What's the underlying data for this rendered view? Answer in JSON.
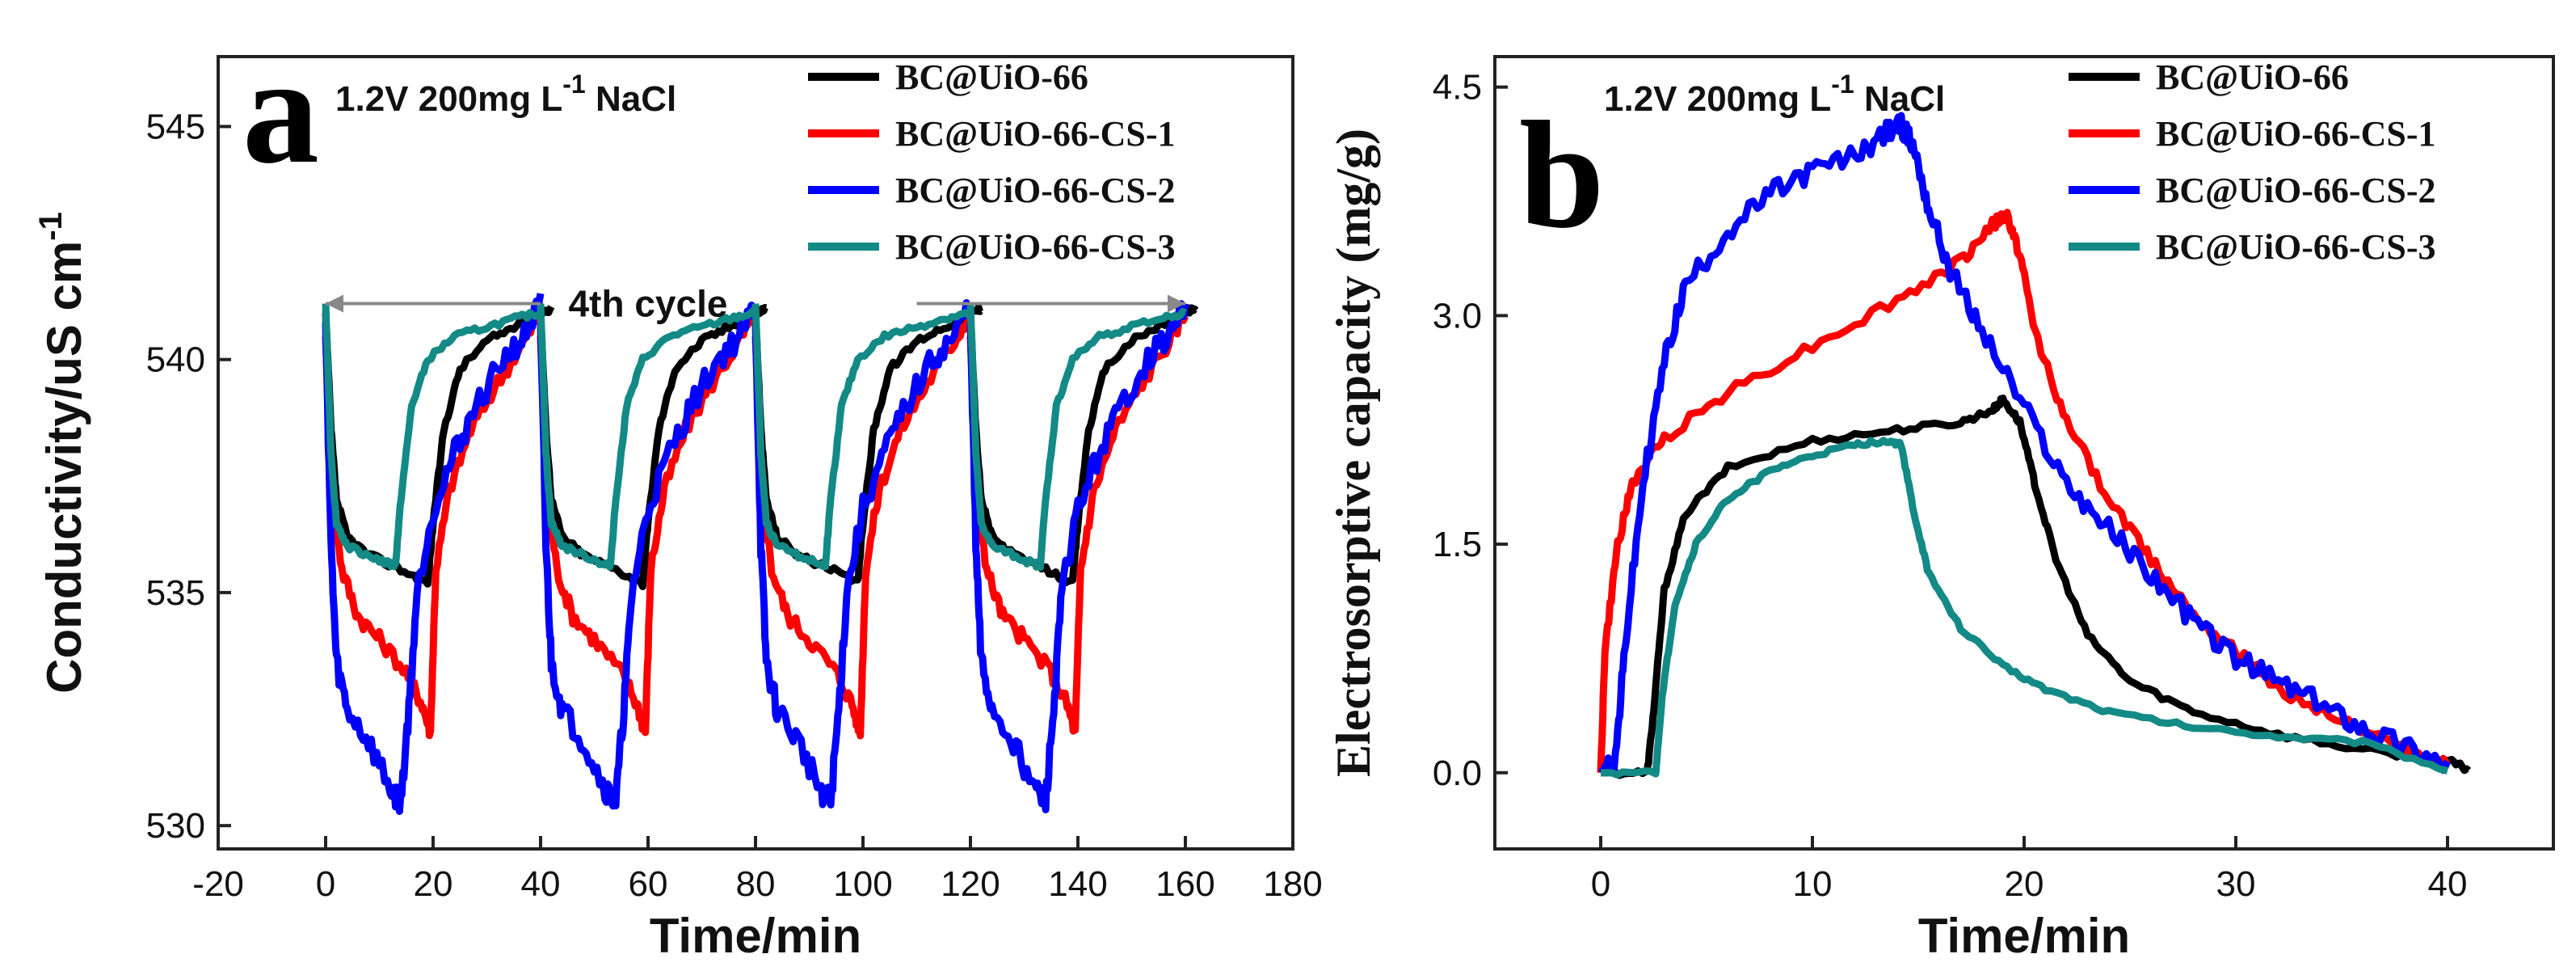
{
  "chart_data": [
    {
      "panel": "a",
      "type": "line",
      "condition": "1.2V 200mg L",
      "condition_sup": "-1",
      "condition_suffix": " NaCl",
      "xlabel": "Time/min",
      "ylabel": "Conductivity/uS cm",
      "ylabel_sup": "-1",
      "xlim": [
        -20,
        180
      ],
      "ylim": [
        529.5,
        546.5
      ],
      "xticks": [
        "-20",
        "0",
        "20",
        "40",
        "60",
        "80",
        "100",
        "120",
        "140",
        "160",
        "180"
      ],
      "xtick_values": [
        -20,
        0,
        20,
        40,
        60,
        80,
        100,
        120,
        140,
        160,
        180
      ],
      "yticks": [
        "530",
        "535",
        "540",
        "545"
      ],
      "ytick_values": [
        530,
        535,
        540,
        545
      ],
      "annotation": "4th cycle",
      "legend_position": "top-right",
      "cycles": [
        0,
        40,
        80,
        120
      ],
      "series": [
        {
          "name": "BC@UiO-66",
          "color": "#000000",
          "points": [
            [
              0,
              541.0
            ],
            [
              1,
              538.5
            ],
            [
              2,
              537.0
            ],
            [
              4,
              536.2
            ],
            [
              8,
              535.8
            ],
            [
              14,
              535.5
            ],
            [
              19,
              535.2
            ],
            [
              20,
              536.5
            ],
            [
              22,
              538.5
            ],
            [
              25,
              539.8
            ],
            [
              30,
              540.4
            ],
            [
              35,
              540.7
            ],
            [
              40,
              541.0
            ],
            [
              42,
              541.1
            ]
          ]
        },
        {
          "name": "BC@UiO-66-CS-1",
          "color": "#ff0000",
          "points": [
            [
              0,
              540.5
            ],
            [
              1,
              537.5
            ],
            [
              3,
              535.5
            ],
            [
              6,
              534.5
            ],
            [
              10,
              534.0
            ],
            [
              15,
              533.3
            ],
            [
              18,
              532.6
            ],
            [
              19.5,
              532.0
            ],
            [
              20.5,
              535.5
            ],
            [
              23,
              537.2
            ],
            [
              27,
              538.5
            ],
            [
              32,
              539.5
            ],
            [
              37,
              540.4
            ],
            [
              40,
              541.0
            ]
          ]
        },
        {
          "name": "BC@UiO-66-CS-2",
          "color": "#0000ff",
          "points": [
            [
              0,
              540.8
            ],
            [
              1,
              536.0
            ],
            [
              2,
              533.5
            ],
            [
              4,
              532.5
            ],
            [
              8,
              531.8
            ],
            [
              12,
              530.8
            ],
            [
              14,
              530.5
            ],
            [
              15.5,
              532.5
            ],
            [
              17,
              535.0
            ],
            [
              20,
              536.8
            ],
            [
              24,
              538.0
            ],
            [
              28,
              539.0
            ],
            [
              33,
              540.0
            ],
            [
              37,
              540.5
            ],
            [
              40,
              541.2
            ]
          ]
        },
        {
          "name": "BC@UiO-66-CS-3",
          "color": "#138a86",
          "points": [
            [
              0,
              541.2
            ],
            [
              1,
              538.0
            ],
            [
              2,
              536.5
            ],
            [
              4,
              536.0
            ],
            [
              8,
              535.8
            ],
            [
              12,
              535.6
            ],
            [
              13,
              535.6
            ],
            [
              14,
              537.0
            ],
            [
              16,
              539.0
            ],
            [
              19,
              540.0
            ],
            [
              24,
              540.5
            ],
            [
              30,
              540.7
            ],
            [
              36,
              540.9
            ],
            [
              40,
              541.0
            ]
          ]
        }
      ]
    },
    {
      "panel": "b",
      "type": "line",
      "condition": "1.2V 200mg L",
      "condition_sup": "-1",
      "condition_suffix": " NaCl",
      "xlabel": "Time/min",
      "ylabel": "Electrosorptive capacity (mg/g)",
      "xlim": [
        -5,
        45
      ],
      "ylim": [
        -0.5,
        4.7
      ],
      "xticks": [
        "0",
        "10",
        "20",
        "30",
        "40"
      ],
      "xtick_values": [
        0,
        10,
        20,
        30,
        40
      ],
      "yticks": [
        "0.0",
        "1.5",
        "3.0",
        "4.5"
      ],
      "ytick_values": [
        0.0,
        1.5,
        3.0,
        4.5
      ],
      "legend_position": "top-right",
      "series": [
        {
          "name": "BC@UiO-66",
          "color": "#000000",
          "points": [
            [
              0,
              0.0
            ],
            [
              2.2,
              0.0
            ],
            [
              2.5,
              0.4
            ],
            [
              3,
              1.2
            ],
            [
              4,
              1.7
            ],
            [
              6,
              2.0
            ],
            [
              10,
              2.18
            ],
            [
              14,
              2.25
            ],
            [
              17,
              2.3
            ],
            [
              18.5,
              2.38
            ],
            [
              19,
              2.45
            ],
            [
              19.8,
              2.3
            ],
            [
              20.5,
              1.9
            ],
            [
              21.5,
              1.4
            ],
            [
              23,
              0.9
            ],
            [
              25,
              0.6
            ],
            [
              28,
              0.4
            ],
            [
              32,
              0.25
            ],
            [
              36,
              0.15
            ],
            [
              40,
              0.08
            ],
            [
              41,
              0.02
            ]
          ]
        },
        {
          "name": "BC@UiO-66-CS-1",
          "color": "#ff0000",
          "points": [
            [
              0,
              0.0
            ],
            [
              0.2,
              0.8
            ],
            [
              0.8,
              1.5
            ],
            [
              1.5,
              1.9
            ],
            [
              3,
              2.2
            ],
            [
              6,
              2.5
            ],
            [
              10,
              2.8
            ],
            [
              14,
              3.1
            ],
            [
              17,
              3.35
            ],
            [
              18.5,
              3.6
            ],
            [
              19.2,
              3.65
            ],
            [
              19.8,
              3.4
            ],
            [
              20.5,
              2.9
            ],
            [
              22,
              2.3
            ],
            [
              24,
              1.8
            ],
            [
              26,
              1.4
            ],
            [
              28,
              1.05
            ],
            [
              30,
              0.8
            ],
            [
              32,
              0.55
            ],
            [
              35,
              0.35
            ],
            [
              38,
              0.15
            ],
            [
              40,
              0.05
            ]
          ]
        },
        {
          "name": "BC@UiO-66-CS-2",
          "color": "#0000ff",
          "points": [
            [
              0,
              0.0
            ],
            [
              0.7,
              0.1
            ],
            [
              1.2,
              0.9
            ],
            [
              2,
              1.9
            ],
            [
              3,
              2.7
            ],
            [
              4,
              3.2
            ],
            [
              6,
              3.55
            ],
            [
              8,
              3.8
            ],
            [
              10,
              3.95
            ],
            [
              12,
              4.05
            ],
            [
              13.5,
              4.2
            ],
            [
              14.2,
              4.25
            ],
            [
              14.8,
              4.1
            ],
            [
              15.5,
              3.7
            ],
            [
              16.5,
              3.3
            ],
            [
              18,
              2.9
            ],
            [
              20,
              2.4
            ],
            [
              22,
              1.9
            ],
            [
              24,
              1.6
            ],
            [
              26,
              1.3
            ],
            [
              28,
              1.0
            ],
            [
              30,
              0.75
            ],
            [
              32,
              0.6
            ],
            [
              34,
              0.45
            ],
            [
              36,
              0.3
            ],
            [
              38,
              0.18
            ],
            [
              40,
              0.05
            ]
          ]
        },
        {
          "name": "BC@UiO-66-CS-3",
          "color": "#138a86",
          "points": [
            [
              0,
              0.0
            ],
            [
              2.6,
              0.0
            ],
            [
              2.9,
              0.5
            ],
            [
              3.5,
              1.1
            ],
            [
              4.5,
              1.5
            ],
            [
              6,
              1.8
            ],
            [
              8,
              1.98
            ],
            [
              10,
              2.08
            ],
            [
              12,
              2.15
            ],
            [
              13.5,
              2.18
            ],
            [
              14.2,
              2.15
            ],
            [
              14.8,
              1.7
            ],
            [
              15.5,
              1.3
            ],
            [
              17,
              0.95
            ],
            [
              19,
              0.7
            ],
            [
              21,
              0.55
            ],
            [
              24,
              0.4
            ],
            [
              28,
              0.3
            ],
            [
              32,
              0.24
            ],
            [
              36,
              0.2
            ],
            [
              40,
              0.02
            ]
          ]
        }
      ]
    }
  ]
}
